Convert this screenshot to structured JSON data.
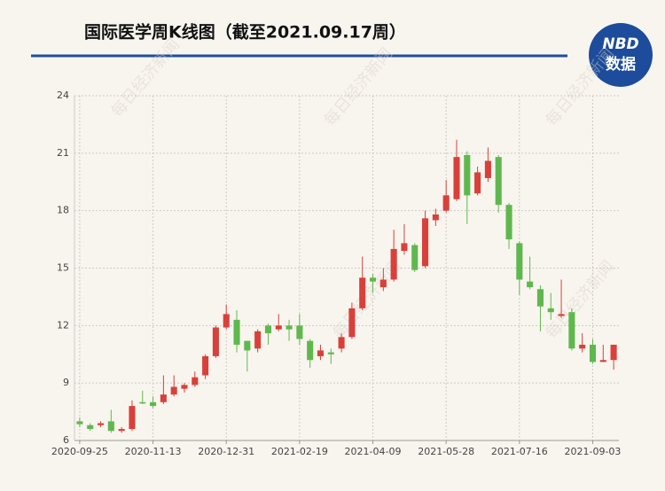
{
  "chart_data": {
    "type": "candlestick",
    "title": "国际医学周K线图（截至2021.09.17周）",
    "categories": [
      "2020-09-25",
      null,
      null,
      null,
      null,
      null,
      null,
      "2020-11-13",
      null,
      null,
      null,
      null,
      null,
      null,
      "2020-12-31",
      null,
      null,
      null,
      null,
      null,
      null,
      "2021-02-19",
      null,
      null,
      null,
      null,
      null,
      null,
      "2021-04-09",
      null,
      null,
      null,
      null,
      null,
      null,
      "2021-05-28",
      null,
      null,
      null,
      null,
      null,
      null,
      "2021-07-16",
      null,
      null,
      null,
      null,
      null,
      null,
      "2021-09-03",
      null,
      null
    ],
    "series": {
      "open": [
        7.0,
        6.8,
        6.8,
        7.0,
        6.5,
        6.6,
        8.0,
        8.0,
        8.0,
        8.4,
        8.7,
        8.9,
        9.4,
        10.4,
        11.9,
        12.3,
        11.2,
        10.8,
        12.0,
        11.8,
        12.0,
        12.0,
        11.2,
        10.4,
        10.6,
        10.8,
        11.4,
        12.9,
        14.5,
        14.0,
        14.4,
        15.9,
        16.2,
        15.1,
        17.5,
        18.0,
        18.6,
        20.9,
        18.9,
        19.7,
        20.8,
        18.3,
        16.3,
        14.3,
        13.9,
        12.9,
        12.5,
        12.7,
        10.8,
        11.0,
        10.1,
        10.2
      ],
      "high": [
        7.2,
        6.9,
        7.0,
        7.6,
        6.7,
        8.1,
        8.6,
        8.3,
        9.4,
        9.4,
        9.0,
        9.6,
        10.5,
        12.0,
        13.1,
        12.8,
        11.2,
        11.8,
        12.1,
        12.6,
        12.3,
        12.6,
        11.3,
        11.0,
        10.8,
        11.6,
        13.2,
        15.6,
        14.7,
        15.0,
        17.0,
        17.3,
        16.3,
        18.0,
        18.1,
        19.6,
        21.7,
        21.1,
        20.3,
        21.3,
        20.9,
        18.4,
        16.4,
        15.6,
        14.1,
        13.7,
        14.4,
        12.9,
        11.6,
        11.3,
        11.0,
        11.0
      ],
      "low": [
        6.7,
        6.5,
        6.7,
        6.4,
        6.4,
        6.5,
        7.9,
        7.7,
        7.9,
        8.3,
        8.5,
        8.8,
        9.2,
        10.3,
        11.8,
        10.6,
        9.6,
        10.6,
        11.0,
        11.7,
        11.2,
        11.0,
        9.8,
        10.2,
        10.0,
        10.6,
        11.3,
        12.8,
        13.7,
        13.8,
        14.3,
        15.7,
        14.8,
        15.0,
        17.2,
        17.9,
        18.5,
        17.3,
        18.8,
        19.5,
        17.9,
        16.0,
        13.6,
        13.9,
        11.7,
        12.3,
        12.4,
        10.7,
        10.6,
        10.0,
        10.1,
        9.7
      ],
      "close": [
        6.85,
        6.6,
        6.9,
        6.5,
        6.6,
        7.8,
        7.95,
        7.8,
        8.4,
        8.8,
        8.9,
        9.3,
        10.4,
        11.9,
        12.6,
        11.0,
        10.7,
        11.7,
        11.6,
        12.0,
        11.8,
        11.3,
        10.2,
        10.7,
        10.5,
        11.4,
        12.9,
        14.5,
        14.3,
        14.4,
        16.0,
        16.3,
        14.9,
        17.6,
        17.8,
        18.8,
        20.8,
        18.8,
        20.0,
        20.6,
        18.3,
        16.5,
        14.4,
        14.0,
        13.0,
        12.7,
        12.6,
        10.8,
        11.0,
        10.1,
        10.2,
        11.0
      ]
    },
    "up_color": "#d9403a",
    "down_color": "#5fb84d",
    "ylim": [
      6,
      24
    ],
    "yticks": [
      6,
      9,
      12,
      15,
      18,
      21,
      24
    ],
    "grid": true
  },
  "logo": {
    "top": "NBD",
    "bottom": "数据"
  },
  "watermark": "每日经济新闻"
}
